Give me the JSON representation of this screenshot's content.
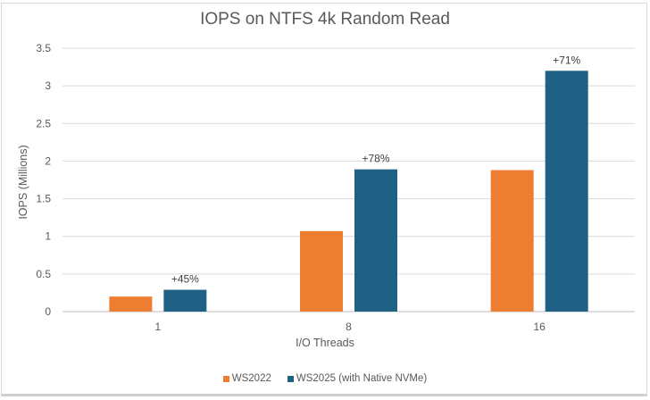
{
  "chart_data": {
    "type": "bar",
    "title": "IOPS on NTFS 4k Random Read",
    "xlabel": "I/O Threads",
    "ylabel": "IOPS (Millions)",
    "ylim": [
      0,
      3.5
    ],
    "yticks": [
      "0",
      "0.5",
      "1",
      "1.5",
      "2",
      "2.5",
      "3",
      "3.5"
    ],
    "grid": true,
    "legend_position": "bottom",
    "categories": [
      "1",
      "8",
      "16"
    ],
    "series": [
      {
        "name": "WS2022",
        "color": "#ED7D31",
        "values": [
          0.2,
          1.07,
          1.88
        ]
      },
      {
        "name": "WS2025 (with Native NVMe)",
        "color": "#1F6185",
        "values": [
          0.29,
          1.89,
          3.2
        ]
      }
    ],
    "annotations": [
      "+45%",
      "+78%",
      "+71%"
    ]
  }
}
